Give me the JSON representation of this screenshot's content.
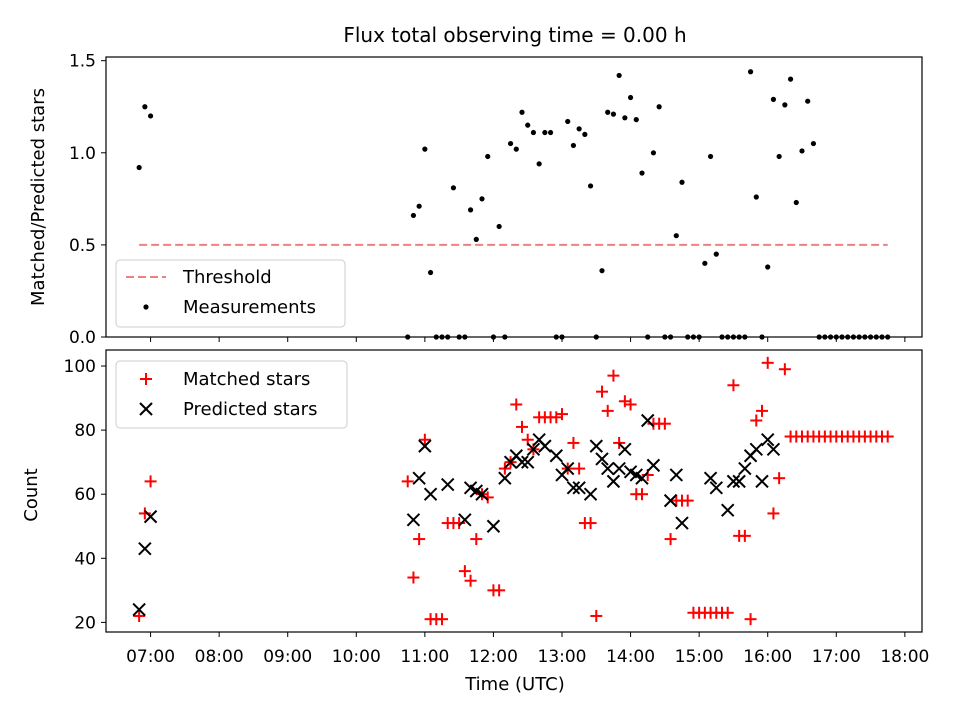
{
  "title": "Flux total observing time = 0.00 h",
  "chart_data": [
    {
      "type": "scatter",
      "xlabel": "",
      "ylabel": "Matched/Predicted stars",
      "xlim_hours": [
        6.35,
        18.25
      ],
      "ylim": [
        0,
        1.52
      ],
      "yticks": [
        "0.0",
        "0.5",
        "1.0",
        "1.5"
      ],
      "legend": {
        "placement": "lower-left",
        "entries": [
          "Threshold",
          "Measurements"
        ]
      },
      "threshold": {
        "name": "Threshold",
        "value": 0.5,
        "x_from": "06:50",
        "x_to": "17:45",
        "color": "#f08080",
        "style": "dashed"
      },
      "series": [
        {
          "name": "Measurements",
          "color": "#000000",
          "points": [
            [
              "06:50",
              0.92
            ],
            [
              "06:55",
              1.25
            ],
            [
              "07:00",
              1.2
            ],
            [
              "10:45",
              0.0
            ],
            [
              "10:50",
              0.66
            ],
            [
              "10:55",
              0.71
            ],
            [
              "11:00",
              1.02
            ],
            [
              "11:05",
              0.35
            ],
            [
              "11:10",
              0.0
            ],
            [
              "11:15",
              0.0
            ],
            [
              "11:20",
              0.0
            ],
            [
              "11:25",
              0.81
            ],
            [
              "11:30",
              0.0
            ],
            [
              "11:35",
              0.0
            ],
            [
              "11:40",
              0.69
            ],
            [
              "11:45",
              0.53
            ],
            [
              "11:50",
              0.75
            ],
            [
              "11:55",
              0.98
            ],
            [
              "12:00",
              0.0
            ],
            [
              "12:05",
              0.6
            ],
            [
              "12:10",
              0.0
            ],
            [
              "12:15",
              1.05
            ],
            [
              "12:20",
              1.02
            ],
            [
              "12:25",
              1.22
            ],
            [
              "12:30",
              1.15
            ],
            [
              "12:35",
              1.11
            ],
            [
              "12:40",
              0.94
            ],
            [
              "12:45",
              1.11
            ],
            [
              "12:50",
              1.11
            ],
            [
              "12:55",
              0.0
            ],
            [
              "13:00",
              0.0
            ],
            [
              "13:05",
              1.17
            ],
            [
              "13:10",
              1.04
            ],
            [
              "13:15",
              1.13
            ],
            [
              "13:20",
              1.1
            ],
            [
              "13:25",
              0.82
            ],
            [
              "13:30",
              0.0
            ],
            [
              "13:35",
              0.36
            ],
            [
              "13:40",
              1.22
            ],
            [
              "13:45",
              1.21
            ],
            [
              "13:50",
              1.42
            ],
            [
              "13:55",
              1.19
            ],
            [
              "14:00",
              1.3
            ],
            [
              "14:05",
              1.18
            ],
            [
              "14:10",
              0.89
            ],
            [
              "14:15",
              0.0
            ],
            [
              "14:20",
              1.0
            ],
            [
              "14:25",
              1.25
            ],
            [
              "14:30",
              0.0
            ],
            [
              "14:35",
              0.0
            ],
            [
              "14:40",
              0.55
            ],
            [
              "14:45",
              0.84
            ],
            [
              "14:50",
              0.0
            ],
            [
              "14:55",
              0.0
            ],
            [
              "15:00",
              0.0
            ],
            [
              "15:05",
              0.4
            ],
            [
              "15:10",
              0.98
            ],
            [
              "15:15",
              0.45
            ],
            [
              "15:20",
              0.0
            ],
            [
              "15:25",
              0.0
            ],
            [
              "15:30",
              0.0
            ],
            [
              "15:35",
              0.0
            ],
            [
              "15:40",
              0.0
            ],
            [
              "15:45",
              1.44
            ],
            [
              "15:50",
              0.76
            ],
            [
              "15:55",
              0.0
            ],
            [
              "16:00",
              0.38
            ],
            [
              "16:05",
              1.29
            ],
            [
              "16:10",
              0.98
            ],
            [
              "16:15",
              1.26
            ],
            [
              "16:20",
              1.4
            ],
            [
              "16:25",
              0.73
            ],
            [
              "16:30",
              1.01
            ],
            [
              "16:35",
              1.28
            ],
            [
              "16:40",
              1.05
            ],
            [
              "16:45",
              0.0
            ],
            [
              "16:50",
              0.0
            ],
            [
              "16:55",
              0.0
            ],
            [
              "17:00",
              0.0
            ],
            [
              "17:05",
              0.0
            ],
            [
              "17:10",
              0.0
            ],
            [
              "17:15",
              0.0
            ],
            [
              "17:20",
              0.0
            ],
            [
              "17:25",
              0.0
            ],
            [
              "17:30",
              0.0
            ],
            [
              "17:35",
              0.0
            ],
            [
              "17:40",
              0.0
            ],
            [
              "17:45",
              0.0
            ]
          ]
        }
      ]
    },
    {
      "type": "scatter",
      "xlabel": "Time (UTC)",
      "ylabel": "Count",
      "xlim_hours": [
        6.35,
        18.25
      ],
      "ylim": [
        17,
        105
      ],
      "yticks": [
        "20",
        "40",
        "60",
        "80",
        "100"
      ],
      "xticks": [
        "07:00",
        "08:00",
        "09:00",
        "10:00",
        "11:00",
        "12:00",
        "13:00",
        "14:00",
        "15:00",
        "16:00",
        "17:00",
        "18:00"
      ],
      "legend": {
        "placement": "upper-left",
        "entries": [
          "Matched stars",
          "Predicted stars"
        ]
      },
      "series": [
        {
          "name": "Matched stars",
          "marker": "plus",
          "color": "#ff0000",
          "points": [
            [
              "06:50",
              22
            ],
            [
              "06:55",
              54
            ],
            [
              "07:00",
              64
            ],
            [
              "10:45",
              64
            ],
            [
              "10:50",
              34
            ],
            [
              "10:55",
              46
            ],
            [
              "11:00",
              77
            ],
            [
              "11:05",
              21
            ],
            [
              "11:10",
              21
            ],
            [
              "11:15",
              21
            ],
            [
              "11:20",
              51
            ],
            [
              "11:25",
              51
            ],
            [
              "11:30",
              51
            ],
            [
              "11:35",
              36
            ],
            [
              "11:40",
              33
            ],
            [
              "11:45",
              46
            ],
            [
              "11:50",
              60
            ],
            [
              "11:55",
              59
            ],
            [
              "12:00",
              30
            ],
            [
              "12:05",
              30
            ],
            [
              "12:10",
              68
            ],
            [
              "12:15",
              70
            ],
            [
              "12:20",
              88
            ],
            [
              "12:25",
              81
            ],
            [
              "12:30",
              77
            ],
            [
              "12:35",
              74
            ],
            [
              "12:40",
              84
            ],
            [
              "12:45",
              84
            ],
            [
              "12:50",
              84
            ],
            [
              "12:55",
              84
            ],
            [
              "13:00",
              85
            ],
            [
              "13:05",
              68
            ],
            [
              "13:10",
              76
            ],
            [
              "13:15",
              68
            ],
            [
              "13:20",
              51
            ],
            [
              "13:25",
              51
            ],
            [
              "13:30",
              22
            ],
            [
              "13:35",
              92
            ],
            [
              "13:40",
              86
            ],
            [
              "13:45",
              97
            ],
            [
              "13:50",
              76
            ],
            [
              "13:55",
              89
            ],
            [
              "14:00",
              88
            ],
            [
              "14:05",
              60
            ],
            [
              "14:10",
              60
            ],
            [
              "14:15",
              66
            ],
            [
              "14:20",
              82
            ],
            [
              "14:25",
              82
            ],
            [
              "14:30",
              82
            ],
            [
              "14:35",
              46
            ],
            [
              "14:40",
              58
            ],
            [
              "14:45",
              58
            ],
            [
              "14:50",
              58
            ],
            [
              "14:55",
              23
            ],
            [
              "15:00",
              23
            ],
            [
              "15:05",
              23
            ],
            [
              "15:10",
              23
            ],
            [
              "15:15",
              23
            ],
            [
              "15:20",
              23
            ],
            [
              "15:25",
              23
            ],
            [
              "15:30",
              94
            ],
            [
              "15:35",
              47
            ],
            [
              "15:40",
              47
            ],
            [
              "15:45",
              21
            ],
            [
              "15:50",
              83
            ],
            [
              "15:55",
              86
            ],
            [
              "16:00",
              101
            ],
            [
              "16:05",
              54
            ],
            [
              "16:10",
              65
            ],
            [
              "16:15",
              99
            ],
            [
              "16:20",
              78
            ],
            [
              "16:25",
              78
            ],
            [
              "16:30",
              78
            ],
            [
              "16:35",
              78
            ],
            [
              "16:40",
              78
            ],
            [
              "16:45",
              78
            ],
            [
              "16:50",
              78
            ],
            [
              "16:55",
              78
            ],
            [
              "17:00",
              78
            ],
            [
              "17:05",
              78
            ],
            [
              "17:10",
              78
            ],
            [
              "17:15",
              78
            ],
            [
              "17:20",
              78
            ],
            [
              "17:25",
              78
            ],
            [
              "17:30",
              78
            ],
            [
              "17:35",
              78
            ],
            [
              "17:40",
              78
            ],
            [
              "17:45",
              78
            ]
          ]
        },
        {
          "name": "Predicted stars",
          "marker": "x",
          "color": "#000000",
          "points": [
            [
              "06:50",
              24
            ],
            [
              "06:55",
              43
            ],
            [
              "07:00",
              53
            ],
            [
              "10:50",
              52
            ],
            [
              "10:55",
              65
            ],
            [
              "11:00",
              75
            ],
            [
              "11:05",
              60
            ],
            [
              "11:20",
              63
            ],
            [
              "11:35",
              52
            ],
            [
              "11:40",
              62
            ],
            [
              "11:45",
              61
            ],
            [
              "11:50",
              60
            ],
            [
              "12:00",
              50
            ],
            [
              "12:10",
              65
            ],
            [
              "12:15",
              70
            ],
            [
              "12:20",
              72
            ],
            [
              "12:25",
              70
            ],
            [
              "12:30",
              70
            ],
            [
              "12:35",
              74
            ],
            [
              "12:40",
              77
            ],
            [
              "12:45",
              75
            ],
            [
              "12:55",
              72
            ],
            [
              "13:00",
              66
            ],
            [
              "13:05",
              68
            ],
            [
              "13:10",
              62
            ],
            [
              "13:15",
              62
            ],
            [
              "13:25",
              60
            ],
            [
              "13:30",
              75
            ],
            [
              "13:35",
              71
            ],
            [
              "13:40",
              68
            ],
            [
              "13:45",
              64
            ],
            [
              "13:50",
              68
            ],
            [
              "13:55",
              74
            ],
            [
              "14:00",
              67
            ],
            [
              "14:05",
              66
            ],
            [
              "14:10",
              65
            ],
            [
              "14:15",
              83
            ],
            [
              "14:20",
              69
            ],
            [
              "14:35",
              58
            ],
            [
              "14:40",
              66
            ],
            [
              "14:45",
              51
            ],
            [
              "15:10",
              65
            ],
            [
              "15:15",
              62
            ],
            [
              "15:25",
              55
            ],
            [
              "15:30",
              64
            ],
            [
              "15:35",
              64
            ],
            [
              "15:40",
              68
            ],
            [
              "15:45",
              72
            ],
            [
              "15:50",
              74
            ],
            [
              "15:55",
              64
            ],
            [
              "16:00",
              77
            ],
            [
              "16:05",
              74
            ]
          ]
        }
      ]
    }
  ]
}
